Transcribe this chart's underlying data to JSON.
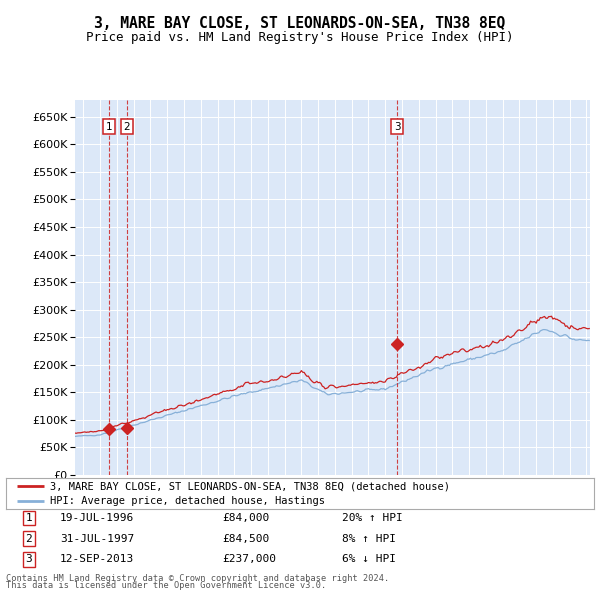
{
  "title": "3, MARE BAY CLOSE, ST LEONARDS-ON-SEA, TN38 8EQ",
  "subtitle": "Price paid vs. HM Land Registry's House Price Index (HPI)",
  "legend_line1": "3, MARE BAY CLOSE, ST LEONARDS-ON-SEA, TN38 8EQ (detached house)",
  "legend_line2": "HPI: Average price, detached house, Hastings",
  "footer1": "Contains HM Land Registry data © Crown copyright and database right 2024.",
  "footer2": "This data is licensed under the Open Government Licence v3.0.",
  "transactions": [
    {
      "label": "1",
      "date": "19-JUL-1996",
      "price": 84000,
      "hpi_rel": "20% ↑ HPI",
      "year": 1996.54
    },
    {
      "label": "2",
      "date": "31-JUL-1997",
      "price": 84500,
      "hpi_rel": "8% ↑ HPI",
      "year": 1997.58
    },
    {
      "label": "3",
      "date": "12-SEP-2013",
      "price": 237000,
      "hpi_rel": "6% ↓ HPI",
      "year": 2013.71
    }
  ],
  "hpi_color": "#87b0d8",
  "price_color": "#cc2222",
  "background_chart": "#dce8f8",
  "grid_color": "#ffffff",
  "ylim_max": 680000,
  "ytick_step": 50000,
  "xlim_start": 1994.5,
  "xlim_end": 2025.2,
  "table_rows": [
    [
      "1",
      "19-JUL-1996",
      "£84,000",
      "20% ↑ HPI"
    ],
    [
      "2",
      "31-JUL-1997",
      "£84,500",
      "8% ↑ HPI"
    ],
    [
      "3",
      "12-SEP-2013",
      "£237,000",
      "6% ↓ HPI"
    ]
  ]
}
